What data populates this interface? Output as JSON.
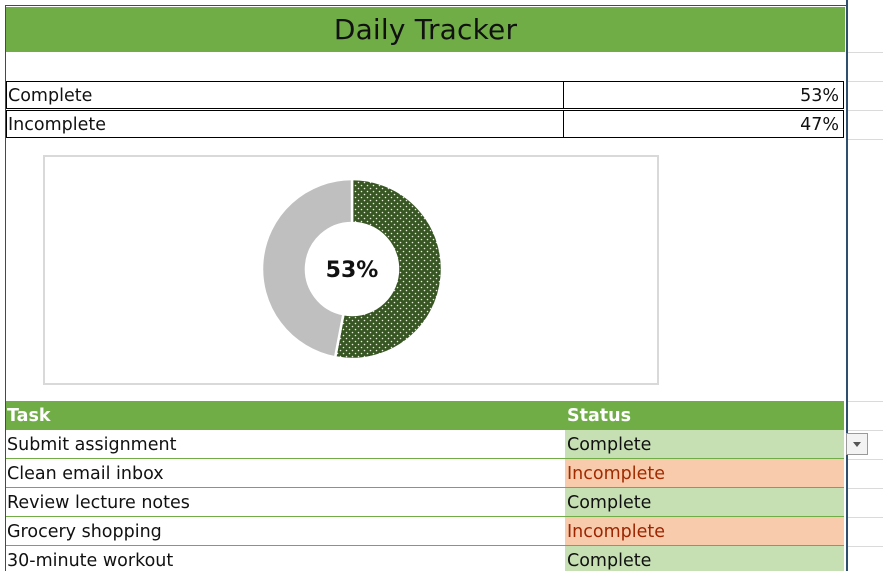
{
  "title": "Daily Tracker",
  "summary": [
    {
      "label": "Complete",
      "value": "53%"
    },
    {
      "label": "Incomplete",
      "value": "47%"
    }
  ],
  "chart_data": {
    "type": "pie",
    "style": "donut",
    "center_label": "53%",
    "slices": [
      {
        "name": "Complete",
        "value": 53,
        "color": "#375623",
        "pattern": "dotted"
      },
      {
        "name": "Incomplete",
        "value": 47,
        "color": "#bfbfbf"
      }
    ]
  },
  "table": {
    "headers": {
      "task": "Task",
      "status": "Status"
    },
    "rows": [
      {
        "task": "Submit assignment",
        "status": "Complete"
      },
      {
        "task": "Clean email inbox",
        "status": "Incomplete"
      },
      {
        "task": "Review lecture notes",
        "status": "Complete"
      },
      {
        "task": "Grocery shopping",
        "status": "Incomplete"
      },
      {
        "task": "30-minute workout",
        "status": "Complete"
      }
    ]
  },
  "colors": {
    "header_green": "#70ad47",
    "complete_fill": "#c6e0b4",
    "incomplete_fill": "#f8cbad",
    "incomplete_text": "#9c2500",
    "donut_complete": "#375623",
    "donut_incomplete": "#bfbfbf"
  },
  "icons": {
    "dropdown": "chevron-down-icon"
  }
}
